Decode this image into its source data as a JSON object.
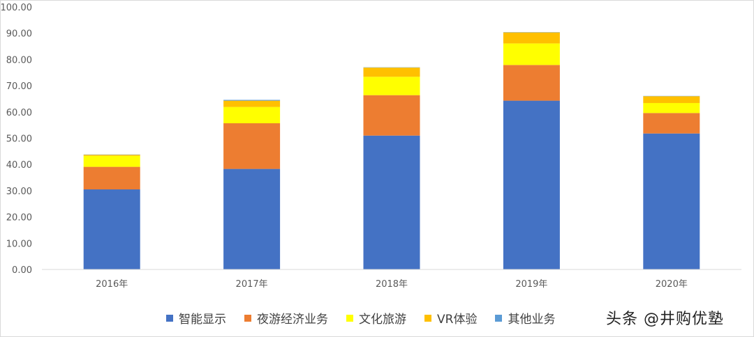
{
  "chart_data": {
    "type": "bar",
    "stacked": true,
    "categories": [
      "2016年",
      "2017年",
      "2018年",
      "2019年",
      "2020年"
    ],
    "ylim": [
      0,
      100
    ],
    "yticks": [
      "0.00",
      "10.00",
      "20.00",
      "30.00",
      "40.00",
      "50.00",
      "60.00",
      "70.00",
      "80.00",
      "90.00",
      "100.00"
    ],
    "ytick_values": [
      0,
      10,
      20,
      30,
      40,
      50,
      60,
      70,
      80,
      90,
      100
    ],
    "grid": false,
    "legend_position": "bottom",
    "series": [
      {
        "name": "智能显示",
        "color": "#4472C4",
        "values": [
          30.5,
          38.3,
          51.0,
          64.3,
          51.8
        ]
      },
      {
        "name": "夜游经济业务",
        "color": "#ED7D31",
        "values": [
          8.6,
          17.4,
          15.4,
          13.6,
          7.8
        ]
      },
      {
        "name": "文化旅游",
        "color": "#FFFF00",
        "values": [
          4.2,
          6.2,
          7.0,
          8.2,
          3.8
        ]
      },
      {
        "name": "VR体验",
        "color": "#FFC000",
        "values": [
          0.4,
          2.4,
          3.5,
          4.2,
          2.6
        ]
      },
      {
        "name": "其他业务",
        "color": "#5B9BD5",
        "values": [
          0.1,
          0.3,
          0.1,
          0.1,
          0.1
        ]
      }
    ]
  },
  "watermark": "头条 @井购优塾"
}
